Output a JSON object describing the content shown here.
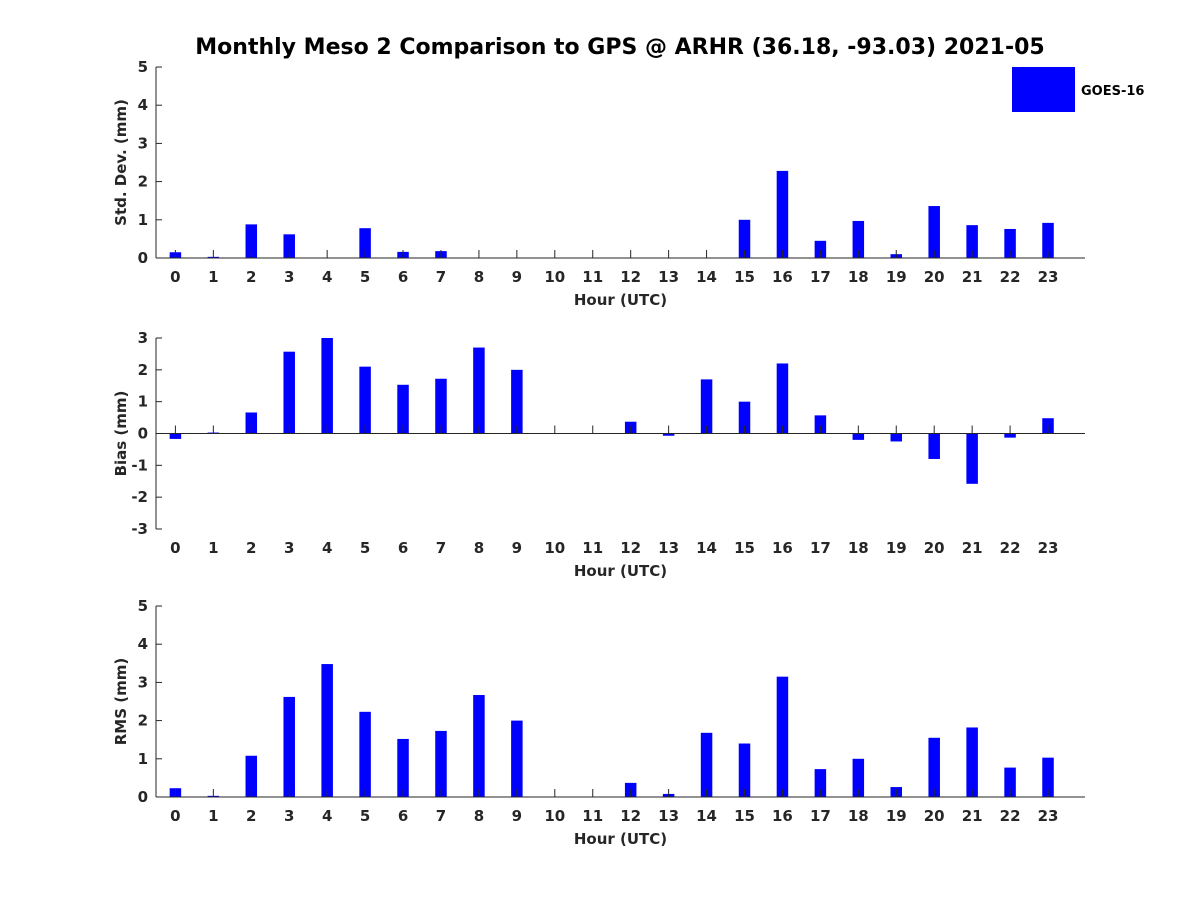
{
  "title": "Monthly Meso 2 Comparison to GPS @ ARHR (36.18, -93.03) 2021-05",
  "legend": {
    "label": "GOES-16",
    "color": "#0000ff"
  },
  "colors": {
    "bar": "#0000ff",
    "axis": "#262626"
  },
  "chart_data": [
    {
      "type": "bar",
      "ylabel": "Std. Dev. (mm)",
      "xlabel": "Hour (UTC)",
      "ylim": [
        0,
        5
      ],
      "yticks": [
        0,
        1,
        2,
        3,
        4,
        5
      ],
      "categories": [
        "0",
        "1",
        "2",
        "3",
        "4",
        "5",
        "6",
        "7",
        "8",
        "9",
        "10",
        "11",
        "12",
        "13",
        "14",
        "15",
        "16",
        "17",
        "18",
        "19",
        "20",
        "21",
        "22",
        "23"
      ],
      "series": [
        {
          "name": "GOES-16",
          "values": [
            0.15,
            0.03,
            0.88,
            0.62,
            null,
            0.78,
            0.16,
            0.18,
            null,
            null,
            null,
            null,
            null,
            null,
            null,
            1.0,
            2.28,
            0.45,
            0.97,
            0.1,
            1.36,
            0.86,
            0.76,
            0.92
          ]
        }
      ]
    },
    {
      "type": "bar",
      "ylabel": "Bias (mm)",
      "xlabel": "Hour (UTC)",
      "ylim": [
        -3,
        3
      ],
      "yticks": [
        -3,
        -2,
        -1,
        0,
        1,
        2,
        3
      ],
      "categories": [
        "0",
        "1",
        "2",
        "3",
        "4",
        "5",
        "6",
        "7",
        "8",
        "9",
        "10",
        "11",
        "12",
        "13",
        "14",
        "15",
        "16",
        "17",
        "18",
        "19",
        "20",
        "21",
        "22",
        "23"
      ],
      "series": [
        {
          "name": "GOES-16",
          "values": [
            -0.17,
            0.03,
            0.66,
            2.57,
            3.0,
            2.1,
            1.53,
            1.72,
            2.7,
            2.0,
            null,
            null,
            0.37,
            -0.07,
            1.7,
            1.0,
            2.2,
            0.57,
            -0.2,
            -0.25,
            -0.8,
            -1.58,
            -0.13,
            0.48
          ]
        }
      ]
    },
    {
      "type": "bar",
      "ylabel": "RMS (mm)",
      "xlabel": "Hour (UTC)",
      "ylim": [
        0,
        5
      ],
      "yticks": [
        0,
        1,
        2,
        3,
        4,
        5
      ],
      "categories": [
        "0",
        "1",
        "2",
        "3",
        "4",
        "5",
        "6",
        "7",
        "8",
        "9",
        "10",
        "11",
        "12",
        "13",
        "14",
        "15",
        "16",
        "17",
        "18",
        "19",
        "20",
        "21",
        "22",
        "23"
      ],
      "series": [
        {
          "name": "GOES-16",
          "values": [
            0.23,
            0.03,
            1.08,
            2.62,
            3.48,
            2.23,
            1.52,
            1.73,
            2.67,
            2.0,
            null,
            null,
            0.37,
            0.08,
            1.68,
            1.4,
            3.15,
            0.73,
            1.0,
            0.26,
            1.55,
            1.82,
            0.77,
            1.03
          ]
        }
      ]
    }
  ]
}
